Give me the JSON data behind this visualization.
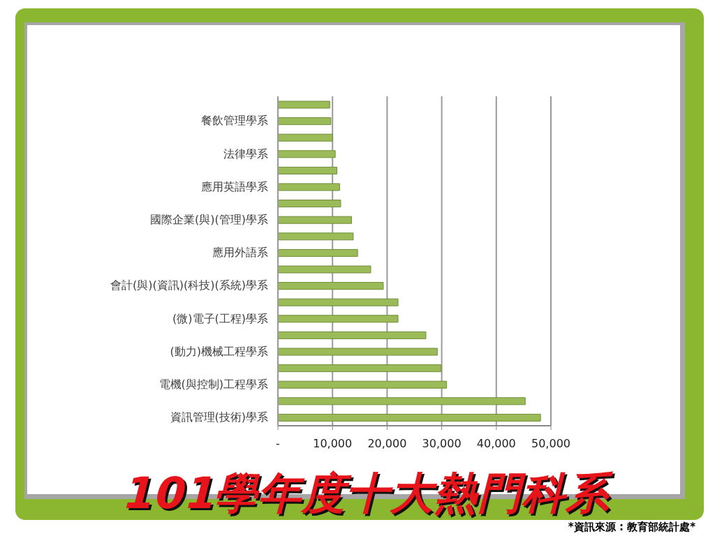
{
  "chart_data": {
    "type": "bar",
    "orientation": "horizontal",
    "title": "101學年度十大熱門科系",
    "categories": [
      null,
      "餐飲管理學系",
      null,
      "法律學系",
      null,
      "應用英語學系",
      null,
      "國際企業(與)(管理)學系",
      null,
      "應用外語系",
      null,
      "會計(與)(資訊)(科技)(系統)學系",
      null,
      "(微)電子(工程)學系",
      null,
      "(動力)機械工程學系",
      null,
      "電機(與控制)工程學系",
      null,
      "資訊管理(技術)學系"
    ],
    "values": [
      9500,
      9700,
      10000,
      10500,
      10800,
      11300,
      11500,
      13500,
      13800,
      14600,
      17000,
      19300,
      22000,
      22000,
      27100,
      29200,
      29900,
      30900,
      45300,
      48100
    ],
    "color": "#9bbb59",
    "xlim": [
      0,
      50000
    ],
    "xticks": [
      {
        "value": 0,
        "label": "-"
      },
      {
        "value": 10000,
        "label": "10,000"
      },
      {
        "value": 20000,
        "label": "20,000"
      },
      {
        "value": 30000,
        "label": "30,000"
      },
      {
        "value": 40000,
        "label": "40,000"
      },
      {
        "value": 50000,
        "label": "50,000"
      }
    ],
    "grid": "x",
    "annotations": [
      "*資訊來源 : 教育部統計處*"
    ]
  }
}
